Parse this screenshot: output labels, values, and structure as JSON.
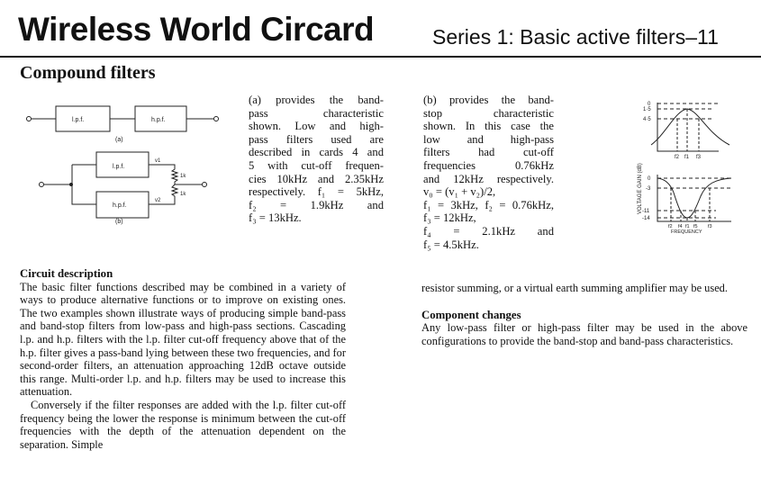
{
  "header": {
    "masthead": "Wireless World Circard",
    "series": "Series 1: Basic active filters–11"
  },
  "title": "Compound filters",
  "diagram": {
    "lpf": "l.p.f.",
    "hpf": "h.p.f.",
    "label_a": "(a)",
    "label_b": "(b)",
    "v1": "v1",
    "v2": "v2",
    "r1": "1k",
    "r2": "1k"
  },
  "graph": {
    "ylabel": "VOLTAGE GAIN (dB)",
    "xlabel": "FREQUENCY",
    "top_ticks": [
      "0",
      "1·5",
      "4·5"
    ],
    "top_f": [
      "f2",
      "f1",
      "f3"
    ],
    "bottom_ticks": [
      "0",
      "-3",
      "-11",
      "-14"
    ],
    "bottom_f": [
      "f2",
      "f4",
      "f1",
      "f5",
      "f3"
    ]
  },
  "col_a": [
    "(a) provides the band-",
    "pass characteristic",
    "shown. Low and high-",
    "pass filters used are",
    "described in cards 4 and",
    "5 with cut-off frequen-",
    "cies 10kHz and 2.35kHz",
    "respectively. f₁ = 5kHz,",
    "f₂ = 1.9kHz and",
    "f₃ = 13kHz."
  ],
  "col_b": [
    "(b) provides the band-",
    "stop characteristic",
    "shown. In this case the",
    "low and high-pass",
    "filters had cut-off",
    "frequencies 0.76kHz",
    "and 12kHz respectively.",
    "v₀ = (v₁ + v₂)/2,",
    "f₁ = 3kHz, f₂ = 0.76kHz,",
    "f₃ = 12kHz,",
    "f₄ = 2.1kHz and",
    "f₅ = 4.5kHz."
  ],
  "circuit": {
    "heading": "Circuit description",
    "p1": "The basic filter functions described may be combined in a variety of ways to produce alternative functions or to improve on existing ones. The two examples shown illustrate ways of producing simple band-pass and band-stop filters from low-pass and high-pass sections. Cascading l.p. and h.p. filters with the l.p. filter cut-off frequency above that of the h.p. filter gives a pass-band lying between these two frequencies, and for second-order filters, an attenuation approaching 12dB octave outside this range. Multi-order l.p. and h.p. filters may be used to increase this attenuation.",
    "p2": "Conversely if the filter responses are added with the l.p. filter cut-off frequency being the lower the response is minimum between the cut-off frequencies with the depth of the attenuation dependent on the separation. Simple",
    "p3": "resistor summing, or a virtual earth summing amplifier may be used."
  },
  "components": {
    "heading": "Component changes",
    "p": "Any low-pass filter or high-pass filter may be used in the above configurations to provide the band-stop and band-pass characteristics."
  }
}
